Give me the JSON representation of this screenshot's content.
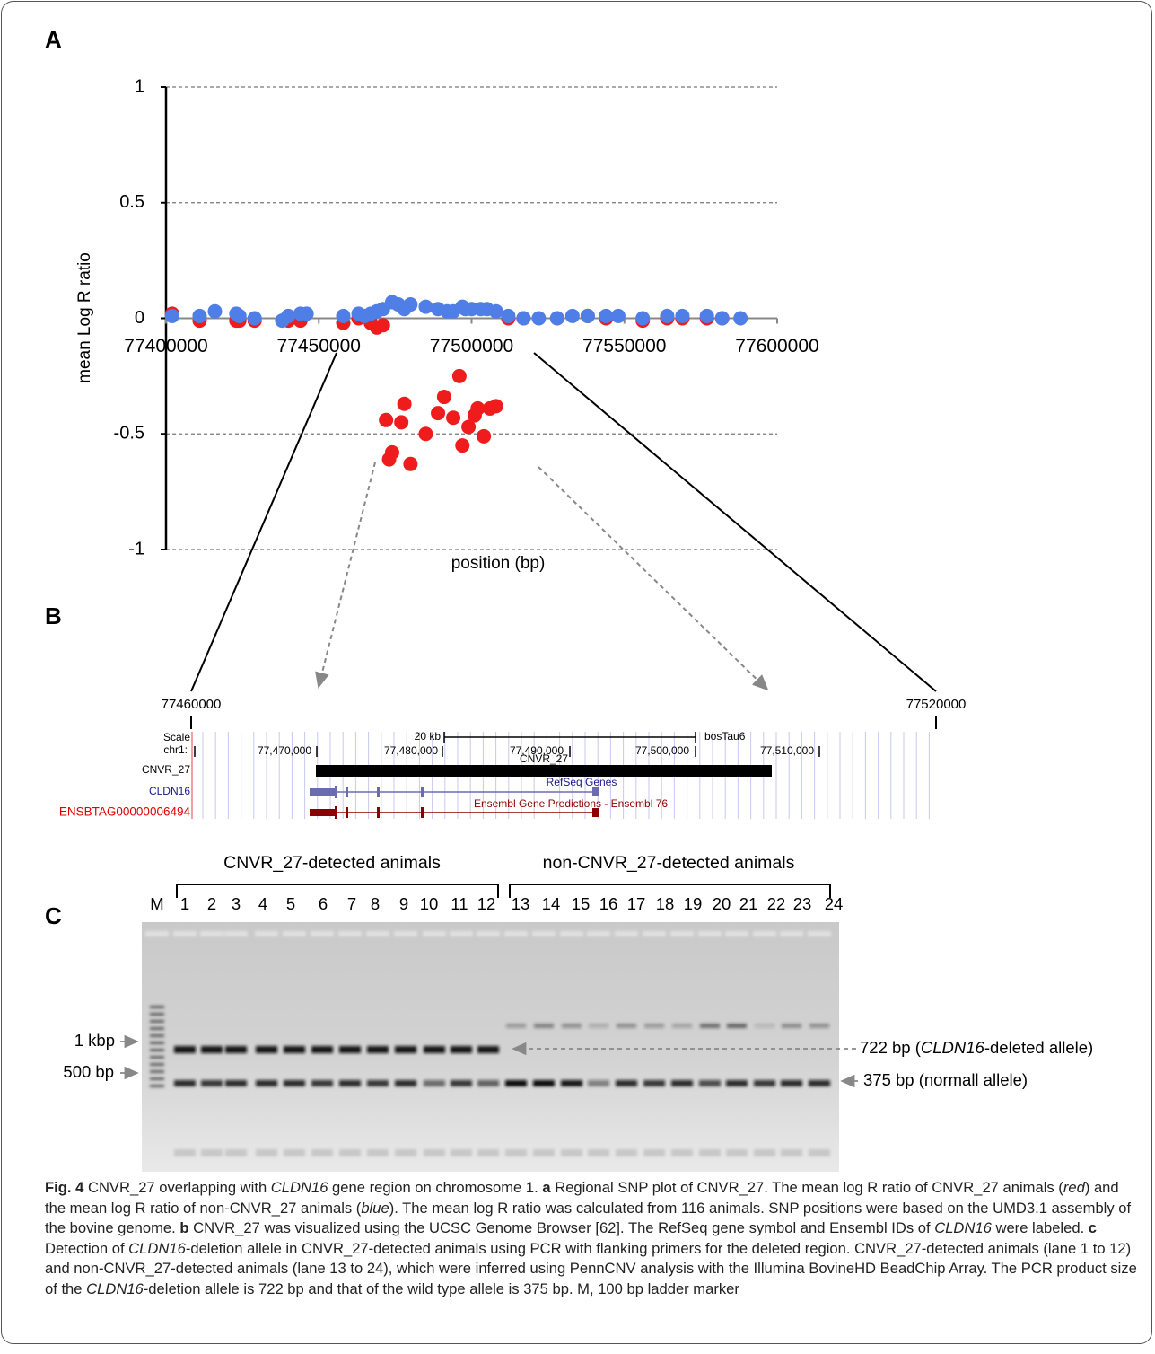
{
  "panel_labels": [
    "A",
    "B",
    "C"
  ],
  "chart_data": {
    "type": "scatter",
    "ylabel": "mean Log R ratio",
    "xlabel": "position (bp)",
    "xlim": [
      77400000,
      77600000
    ],
    "xticks": [
      77400000,
      77450000,
      77500000,
      77550000,
      77600000
    ],
    "ylim": [
      -1,
      1
    ],
    "yticks": [
      -1,
      -0.5,
      0,
      0.5,
      1
    ],
    "grid": true,
    "series": [
      {
        "color": "#ee1c1c",
        "x": [
          77402000,
          77411000,
          77423000,
          77424000,
          77429000,
          77440000,
          77444000,
          77458000,
          77463000,
          77467000,
          77469000,
          77471000,
          77472000,
          77477000,
          77478000,
          77474000,
          77473000,
          77480000,
          77485000,
          77489000,
          77491000,
          77494000,
          77496000,
          77497000,
          77499000,
          77501000,
          77502000,
          77504000,
          77506000,
          77508000,
          77512000,
          77517000,
          77528000,
          77538000,
          77544000,
          77556000,
          77564000,
          77569000,
          77577000,
          77582000
        ],
        "values": [
          0.02,
          -0.01,
          -0.01,
          -0.01,
          -0.01,
          -0.01,
          -0.01,
          -0.02,
          0,
          -0.02,
          -0.04,
          -0.03,
          -0.44,
          -0.45,
          -0.37,
          -0.58,
          -0.61,
          -0.63,
          -0.5,
          -0.41,
          -0.34,
          -0.43,
          -0.25,
          -0.55,
          -0.47,
          -0.42,
          -0.39,
          -0.51,
          -0.39,
          -0.38,
          0,
          0,
          0,
          0.01,
          0,
          -0.01,
          0,
          0,
          0,
          0
        ]
      },
      {
        "color": "#4f7fe6",
        "x": [
          77402000,
          77411000,
          77416000,
          77423000,
          77424000,
          77429000,
          77438000,
          77440000,
          77444000,
          77446000,
          77458000,
          77463000,
          77465000,
          77467000,
          77469000,
          77471000,
          77474000,
          77476000,
          77478000,
          77480000,
          77485000,
          77489000,
          77492000,
          77494000,
          77497000,
          77498000,
          77500000,
          77503000,
          77505000,
          77508000,
          77512000,
          77517000,
          77522000,
          77528000,
          77533000,
          77538000,
          77544000,
          77548000,
          77556000,
          77564000,
          77569000,
          77577000,
          77582000,
          77588000
        ],
        "values": [
          0.01,
          0.01,
          0.03,
          0.02,
          0.01,
          0,
          -0.01,
          0.01,
          0.02,
          0.02,
          0.01,
          0.02,
          0.01,
          0.02,
          0.03,
          0.04,
          0.07,
          0.06,
          0.04,
          0.06,
          0.05,
          0.04,
          0.03,
          0.03,
          0.05,
          0.04,
          0.04,
          0.04,
          0.04,
          0.03,
          0.01,
          0,
          0,
          0,
          0.01,
          0.01,
          0.01,
          0.01,
          0,
          0.01,
          0.01,
          0.01,
          0,
          0
        ]
      }
    ]
  },
  "panel_b": {
    "zoom_start": "77460000",
    "zoom_end": "77520000",
    "scale_label": "Scale",
    "chrom_label": "chr1:",
    "scale_bar": "20 kb",
    "assembly": "bosTau6",
    "coordinates": [
      "77,470,000",
      "77,480,000",
      "77,490,000",
      "77,500,000",
      "77,510,000"
    ],
    "feature_label": "CNVR_27",
    "tracks": [
      {
        "name": "CNVR_27"
      },
      {
        "name": "CLDN16",
        "title": "RefSeq Genes"
      },
      {
        "name": "ENSBTAG00000006494",
        "title": "Ensembl Gene Predictions - Ensembl 76"
      }
    ]
  },
  "panel_c": {
    "groups": [
      "CNVR_27-detected animals",
      "non-CNVR_27-detected animals"
    ],
    "lanes": [
      "M",
      "1",
      "2",
      "3",
      "4",
      "5",
      "6",
      "7",
      "8",
      "9",
      "10",
      "11",
      "12",
      "13",
      "14",
      "15",
      "16",
      "17",
      "18",
      "19",
      "20",
      "21",
      "22",
      "23",
      "24"
    ],
    "ladder_labels": [
      "1 kbp",
      "500 bp"
    ],
    "band_deleted": [
      "722 bp (",
      "CLDN16",
      "-deleted allele)"
    ],
    "band_normal": "375 bp (normall allele)"
  },
  "caption": [
    "Fig. 4",
    " CNVR_27 overlapping with ",
    "CLDN16",
    " gene region on chromosome 1. ",
    "a",
    " Regional SNP plot of CNVR_27. The mean log R ratio of CNVR_27 animals (",
    "red",
    ") and the mean log R ratio of non-CNVR_27 animals (",
    "blue",
    "). The mean log R ratio was calculated from 116 animals. SNP positions were based on the UMD3.1 assembly of the bovine genome. ",
    "b",
    " CNVR_27 was visualized using the UCSC Genome Browser [62]. The RefSeq gene symbol and Ensembl IDs of ",
    "CLDN16",
    " were labeled. ",
    "c",
    " Detection of ",
    "CLDN16",
    "-deletion allele in CNVR_27-detected animals using PCR with flanking primers for the deleted region. CNVR_27-detected animals (lane 1 to 12) and non-CNVR_27-detected animals (lane 13 to 24), which were inferred using PennCNV analysis with the Illumina BovineHD BeadChip Array. The PCR product size of the ",
    "CLDN16",
    "-deletion allele is 722 bp and that of the wild type allele is 375 bp. M, 100 bp ladder marker"
  ]
}
